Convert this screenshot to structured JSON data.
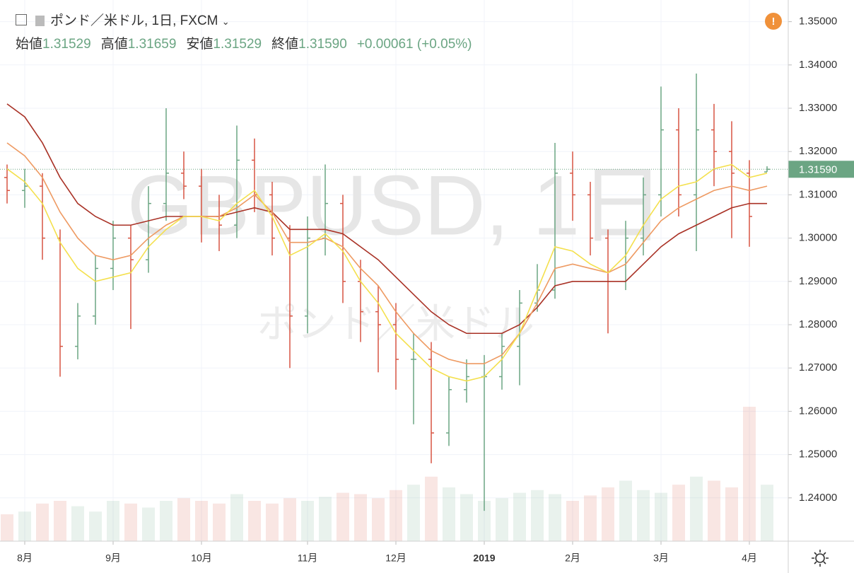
{
  "header": {
    "title": "ポンド／米ドル, 1日, FXCM",
    "ohlc": [
      {
        "label": "始値",
        "value": "1.31529"
      },
      {
        "label": "高値",
        "value": "1.31659"
      },
      {
        "label": "安値",
        "value": "1.31529"
      },
      {
        "label": "終値",
        "value": "1.31590"
      }
    ],
    "change": "+0.00061 (+0.05%)"
  },
  "watermark": {
    "symbol": "GBPUSD, 1日",
    "name": "ポンド／米ドル"
  },
  "chart_data": {
    "type": "ohlc",
    "categories": [
      null,
      "8月",
      null,
      null,
      null,
      null,
      "9月",
      null,
      null,
      null,
      null,
      "10月",
      null,
      null,
      null,
      null,
      null,
      "11月",
      null,
      null,
      null,
      null,
      "12月",
      null,
      null,
      null,
      null,
      "2019",
      null,
      null,
      null,
      null,
      "2月",
      null,
      null,
      null,
      null,
      "3月",
      null,
      null,
      null,
      null,
      "4月",
      null
    ],
    "open": [
      1.314,
      1.311,
      1.312,
      1.3,
      1.275,
      1.282,
      1.293,
      1.3,
      1.295,
      1.308,
      1.315,
      1.312,
      1.305,
      1.303,
      1.318,
      1.31,
      1.3,
      1.282,
      1.3,
      1.308,
      1.29,
      1.283,
      1.28,
      1.272,
      1.272,
      1.255,
      1.265,
      1.268,
      1.268,
      1.275,
      1.285,
      1.288,
      1.315,
      1.31,
      1.3,
      1.29,
      1.3,
      1.31,
      1.325,
      1.31,
      1.325,
      1.32,
      1.315,
      1.31529
    ],
    "high": [
      1.317,
      1.316,
      1.315,
      1.302,
      1.285,
      1.296,
      1.304,
      1.303,
      1.312,
      1.33,
      1.32,
      1.316,
      1.31,
      1.326,
      1.323,
      1.313,
      1.303,
      1.305,
      1.317,
      1.31,
      1.295,
      1.289,
      1.285,
      1.278,
      1.276,
      1.268,
      1.272,
      1.273,
      1.278,
      1.288,
      1.294,
      1.322,
      1.32,
      1.313,
      1.302,
      1.304,
      1.314,
      1.335,
      1.33,
      1.338,
      1.331,
      1.327,
      1.318,
      1.31659
    ],
    "low": [
      1.308,
      1.307,
      1.295,
      1.268,
      1.272,
      1.28,
      1.288,
      1.279,
      1.292,
      1.304,
      1.309,
      1.299,
      1.297,
      1.3,
      1.306,
      1.296,
      1.27,
      1.278,
      1.296,
      1.285,
      1.276,
      1.269,
      1.265,
      1.257,
      1.248,
      1.252,
      1.262,
      1.237,
      1.265,
      1.266,
      1.283,
      1.286,
      1.304,
      1.296,
      1.278,
      1.288,
      1.296,
      1.305,
      1.305,
      1.297,
      1.312,
      1.3,
      1.298,
      1.31529
    ],
    "close": [
      1.311,
      1.312,
      1.3,
      1.275,
      1.282,
      1.293,
      1.3,
      1.295,
      1.308,
      1.315,
      1.312,
      1.305,
      1.303,
      1.318,
      1.31,
      1.3,
      1.282,
      1.3,
      1.308,
      1.29,
      1.283,
      1.28,
      1.272,
      1.272,
      1.255,
      1.265,
      1.268,
      1.268,
      1.275,
      1.285,
      1.288,
      1.315,
      1.31,
      1.3,
      1.29,
      1.3,
      1.31,
      1.325,
      1.31,
      1.325,
      1.32,
      1.315,
      1.305,
      1.3159
    ],
    "volume": [
      20,
      22,
      28,
      30,
      26,
      22,
      30,
      28,
      25,
      30,
      32,
      30,
      28,
      35,
      30,
      28,
      32,
      30,
      33,
      36,
      35,
      32,
      38,
      42,
      48,
      40,
      35,
      30,
      32,
      36,
      38,
      35,
      30,
      34,
      40,
      45,
      38,
      36,
      42,
      48,
      45,
      40,
      100,
      42
    ],
    "up_color": "#6ba583",
    "down_color": "#d75442",
    "series": [
      {
        "color": "#a93226",
        "values": [
          1.331,
          1.328,
          1.322,
          1.314,
          1.308,
          1.305,
          1.303,
          1.303,
          1.304,
          1.305,
          1.305,
          1.305,
          1.305,
          1.306,
          1.307,
          1.306,
          1.302,
          1.302,
          1.302,
          1.301,
          1.298,
          1.295,
          1.291,
          1.287,
          1.283,
          1.28,
          1.278,
          1.278,
          1.278,
          1.28,
          1.284,
          1.289,
          1.29,
          1.29,
          1.29,
          1.29,
          1.294,
          1.298,
          1.301,
          1.303,
          1.305,
          1.307,
          1.308,
          1.308
        ]
      },
      {
        "color": "#ee9a62",
        "values": [
          1.322,
          1.319,
          1.314,
          1.306,
          1.3,
          1.296,
          1.295,
          1.296,
          1.3,
          1.303,
          1.305,
          1.305,
          1.305,
          1.307,
          1.31,
          1.306,
          1.299,
          1.299,
          1.3,
          1.298,
          1.293,
          1.289,
          1.283,
          1.278,
          1.274,
          1.272,
          1.271,
          1.271,
          1.273,
          1.278,
          1.285,
          1.293,
          1.294,
          1.293,
          1.292,
          1.294,
          1.299,
          1.304,
          1.307,
          1.309,
          1.311,
          1.312,
          1.311,
          1.312
        ]
      },
      {
        "color": "#f4e04d",
        "values": [
          1.316,
          1.313,
          1.308,
          1.299,
          1.293,
          1.29,
          1.291,
          1.292,
          1.298,
          1.302,
          1.305,
          1.305,
          1.304,
          1.308,
          1.311,
          1.305,
          1.296,
          1.298,
          1.301,
          1.297,
          1.29,
          1.285,
          1.278,
          1.274,
          1.27,
          1.268,
          1.267,
          1.268,
          1.272,
          1.278,
          1.288,
          1.298,
          1.297,
          1.294,
          1.292,
          1.296,
          1.303,
          1.309,
          1.312,
          1.313,
          1.316,
          1.317,
          1.314,
          1.315
        ]
      }
    ],
    "ylim": [
      1.23,
      1.355
    ],
    "yticks": [
      {
        "value": 1.24,
        "label": "1.24000"
      },
      {
        "value": 1.25,
        "label": "1.25000"
      },
      {
        "value": 1.26,
        "label": "1.26000"
      },
      {
        "value": 1.27,
        "label": "1.27000"
      },
      {
        "value": 1.28,
        "label": "1.28000"
      },
      {
        "value": 1.29,
        "label": "1.29000"
      },
      {
        "value": 1.3,
        "label": "1.30000"
      },
      {
        "value": 1.31,
        "label": "1.31000"
      },
      {
        "value": 1.32,
        "label": "1.32000"
      },
      {
        "value": 1.33,
        "label": "1.33000"
      },
      {
        "value": 1.34,
        "label": "1.34000"
      },
      {
        "value": 1.35,
        "label": "1.35000"
      }
    ],
    "last_price": {
      "value": 1.3159,
      "label": "1.31590"
    },
    "grid": true
  }
}
